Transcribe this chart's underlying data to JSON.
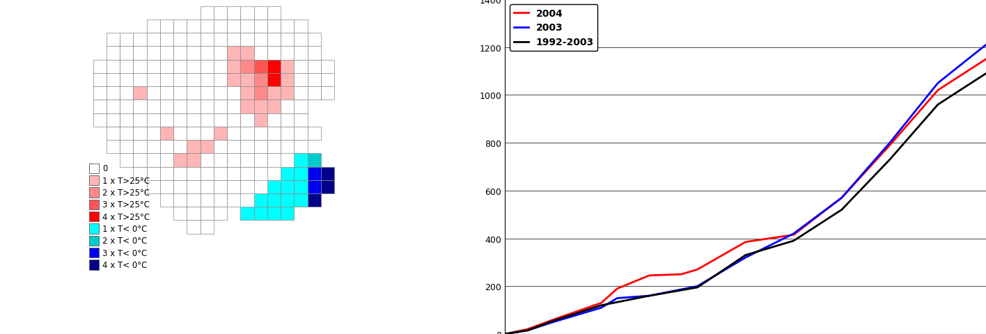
{
  "legend_labels": [
    "0",
    "1 x T>25°C",
    "2 x T>25°C",
    "3 x T>25°C",
    "4 x T>25°C",
    "1 x T< 0°C",
    "2 x T< 0°C",
    "3 x T< 0°C",
    "4 x T< 0°C"
  ],
  "legend_colors": [
    "#FFFFFF",
    "#FFB5B5",
    "#FF8888",
    "#FF5555",
    "#FF0000",
    "#00FFFF",
    "#00CCCC",
    "#0000EE",
    "#000088"
  ],
  "line_colors": [
    "#FF0000",
    "#0000FF",
    "#000000"
  ],
  "line_labels": [
    "2004",
    "2003",
    "1992-2003"
  ],
  "ylim": [
    0,
    1400
  ],
  "yticks": [
    0,
    200,
    400,
    600,
    800,
    1000,
    1200,
    1400
  ],
  "xticks": [
    1,
    16,
    31,
    46,
    61,
    76,
    91,
    106,
    121,
    136,
    151
  ],
  "xlim": [
    1,
    151
  ],
  "grid_rows": 18,
  "grid_cols": 22,
  "y2004_xp": [
    1,
    8,
    16,
    31,
    36,
    46,
    56,
    61,
    76,
    91,
    106,
    121,
    136,
    151
  ],
  "y2004_yp": [
    0,
    20,
    60,
    130,
    190,
    245,
    250,
    270,
    385,
    415,
    570,
    790,
    1020,
    1150
  ],
  "y2003_xp": [
    1,
    8,
    16,
    31,
    36,
    46,
    61,
    76,
    91,
    106,
    121,
    136,
    151
  ],
  "y2003_yp": [
    0,
    15,
    50,
    110,
    150,
    160,
    200,
    320,
    420,
    570,
    800,
    1050,
    1210
  ],
  "y1992_xp": [
    1,
    8,
    16,
    31,
    46,
    61,
    76,
    91,
    106,
    121,
    136,
    151
  ],
  "y1992_yp": [
    0,
    15,
    55,
    120,
    160,
    195,
    330,
    390,
    520,
    730,
    960,
    1090
  ],
  "grid_data": [
    [
      9,
      9,
      9,
      9,
      9,
      9,
      9,
      9,
      0,
      0,
      0,
      0,
      0,
      0,
      9,
      9,
      9,
      9,
      9,
      9,
      9,
      9
    ],
    [
      9,
      9,
      9,
      9,
      0,
      0,
      0,
      0,
      0,
      0,
      0,
      0,
      0,
      0,
      0,
      0,
      9,
      9,
      9,
      9,
      9,
      9
    ],
    [
      9,
      0,
      0,
      0,
      0,
      0,
      0,
      0,
      0,
      0,
      0,
      0,
      0,
      0,
      0,
      0,
      0,
      9,
      9,
      9,
      9,
      9
    ],
    [
      9,
      0,
      0,
      0,
      0,
      0,
      0,
      0,
      0,
      0,
      1,
      1,
      0,
      0,
      0,
      0,
      0,
      9,
      9,
      9,
      9,
      9
    ],
    [
      0,
      0,
      0,
      0,
      0,
      0,
      0,
      0,
      0,
      0,
      1,
      2,
      3,
      4,
      1,
      0,
      0,
      0,
      9,
      9,
      9,
      9
    ],
    [
      0,
      0,
      0,
      0,
      0,
      0,
      0,
      0,
      0,
      0,
      1,
      1,
      2,
      4,
      1,
      0,
      0,
      0,
      9,
      9,
      9,
      9
    ],
    [
      0,
      0,
      0,
      1,
      0,
      0,
      0,
      0,
      0,
      0,
      0,
      1,
      2,
      1,
      1,
      0,
      0,
      0,
      9,
      9,
      9,
      9
    ],
    [
      0,
      0,
      0,
      0,
      0,
      0,
      0,
      0,
      0,
      0,
      0,
      1,
      1,
      1,
      0,
      0,
      9,
      9,
      9,
      9,
      9,
      9
    ],
    [
      0,
      0,
      0,
      0,
      0,
      0,
      0,
      0,
      0,
      0,
      0,
      0,
      1,
      0,
      0,
      0,
      9,
      9,
      9,
      9,
      9,
      9
    ],
    [
      9,
      0,
      0,
      0,
      0,
      1,
      0,
      0,
      0,
      1,
      0,
      0,
      0,
      0,
      0,
      0,
      0,
      9,
      9,
      9,
      9,
      9
    ],
    [
      9,
      0,
      0,
      0,
      0,
      0,
      0,
      1,
      1,
      0,
      0,
      0,
      0,
      0,
      0,
      0,
      9,
      9,
      9,
      9,
      9,
      9
    ],
    [
      9,
      9,
      0,
      0,
      0,
      0,
      1,
      1,
      0,
      0,
      0,
      0,
      0,
      0,
      9,
      5,
      6,
      9,
      9,
      9,
      9,
      9
    ],
    [
      9,
      9,
      9,
      0,
      0,
      0,
      0,
      0,
      0,
      0,
      0,
      0,
      0,
      9,
      5,
      5,
      7,
      8,
      9,
      9,
      9,
      9
    ],
    [
      9,
      9,
      9,
      9,
      0,
      0,
      0,
      0,
      0,
      0,
      0,
      0,
      9,
      5,
      5,
      5,
      7,
      8,
      9,
      9,
      9,
      9
    ],
    [
      9,
      9,
      9,
      9,
      9,
      0,
      0,
      0,
      0,
      0,
      0,
      9,
      5,
      5,
      5,
      5,
      8,
      9,
      9,
      9,
      9,
      9
    ],
    [
      9,
      9,
      9,
      9,
      9,
      9,
      0,
      0,
      0,
      0,
      9,
      5,
      5,
      5,
      5,
      9,
      9,
      9,
      9,
      9,
      9,
      9
    ],
    [
      9,
      9,
      9,
      9,
      9,
      9,
      9,
      0,
      0,
      9,
      9,
      9,
      9,
      9,
      9,
      9,
      9,
      9,
      9,
      9,
      9,
      9
    ],
    [
      9,
      9,
      9,
      9,
      9,
      9,
      9,
      9,
      9,
      9,
      9,
      9,
      9,
      9,
      9,
      9,
      9,
      9,
      9,
      9,
      9,
      9
    ]
  ]
}
